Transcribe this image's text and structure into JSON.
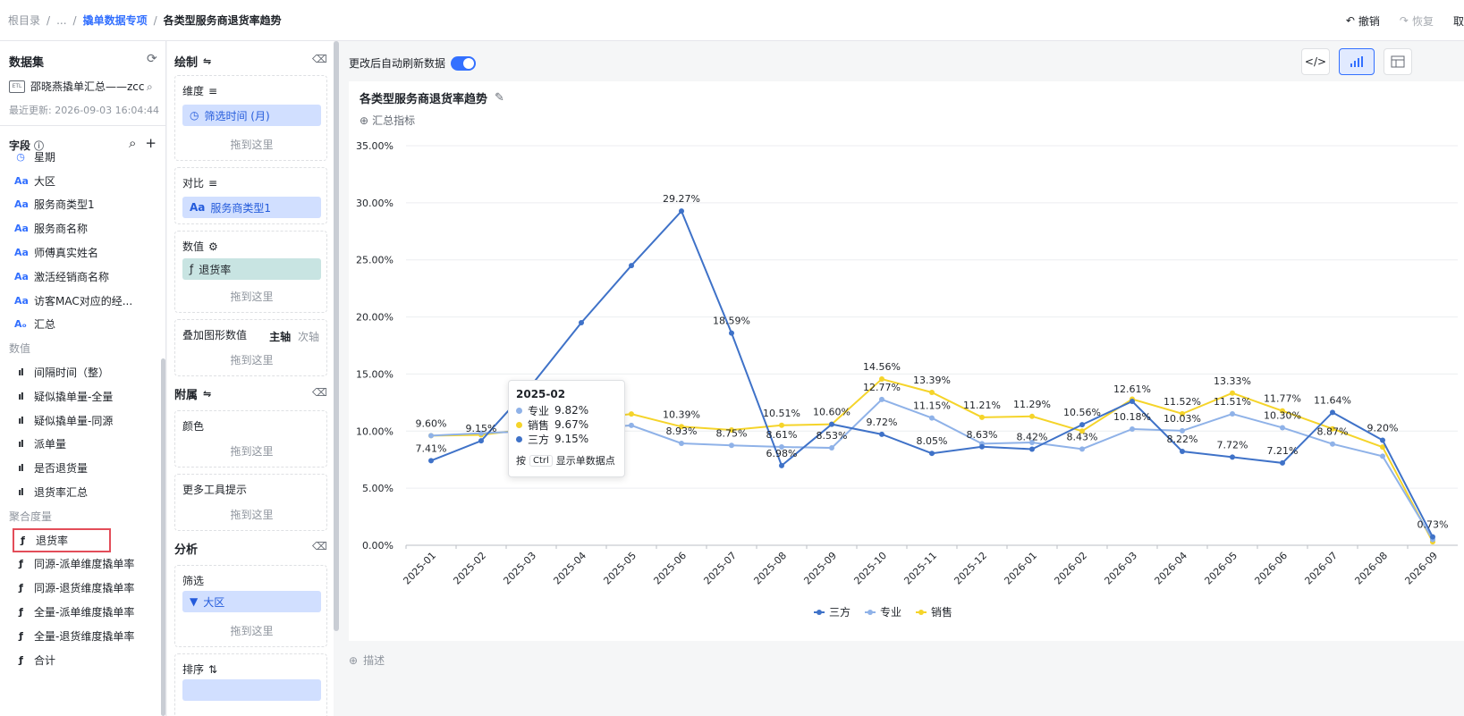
{
  "breadcrumb": {
    "root": "根目录",
    "ellipsis": "...",
    "parent": "撬单数据专项",
    "current": "各类型服务商退货率趋势"
  },
  "top_actions": {
    "undo": "撤销",
    "redo": "恢复",
    "cancel": "取"
  },
  "dataset": {
    "title": "数据集",
    "name": "邵晓燕撬单汇总——zcc",
    "updated": "最近更新: 2026-09-03 16:04:44",
    "fields_label": "字段"
  },
  "field_list": [
    {
      "kind": "item",
      "icon": "date",
      "label": "星期"
    },
    {
      "kind": "item",
      "icon": "text",
      "label": "大区"
    },
    {
      "kind": "item",
      "icon": "text",
      "label": "服务商类型1"
    },
    {
      "kind": "item",
      "icon": "text",
      "label": "服务商名称"
    },
    {
      "kind": "item",
      "icon": "text",
      "label": "师傅真实姓名"
    },
    {
      "kind": "item",
      "icon": "text",
      "label": "激活经销商名称"
    },
    {
      "kind": "item",
      "icon": "text",
      "label": "访客MAC对应的经..."
    },
    {
      "kind": "item",
      "icon": "calc-text",
      "label": "汇总"
    },
    {
      "kind": "group",
      "label": "数值"
    },
    {
      "kind": "item",
      "icon": "measure",
      "label": "间隔时间（整）"
    },
    {
      "kind": "item",
      "icon": "measure",
      "label": "疑似撬单量-全量"
    },
    {
      "kind": "item",
      "icon": "measure",
      "label": "疑似撬单量-同源"
    },
    {
      "kind": "item",
      "icon": "measure",
      "label": "派单量"
    },
    {
      "kind": "item",
      "icon": "measure",
      "label": "是否退货量"
    },
    {
      "kind": "item",
      "icon": "measure",
      "label": "退货率汇总"
    },
    {
      "kind": "group",
      "label": "聚合度量"
    },
    {
      "kind": "item",
      "icon": "agg",
      "label": "退货率",
      "selected": true
    },
    {
      "kind": "item",
      "icon": "agg",
      "label": "同源-派单维度撬单率"
    },
    {
      "kind": "item",
      "icon": "agg",
      "label": "同源-退货维度撬单率"
    },
    {
      "kind": "item",
      "icon": "agg",
      "label": "全量-派单维度撬单率"
    },
    {
      "kind": "item",
      "icon": "agg",
      "label": "全量-退货维度撬单率"
    },
    {
      "kind": "item",
      "icon": "agg",
      "label": "合计"
    }
  ],
  "config": {
    "draw_title": "绘制",
    "dimension_label": "维度",
    "dimension_value": "筛选时间 (月)",
    "compare_label": "对比",
    "compare_value": "服务商类型1",
    "value_label": "数值",
    "value_value": "退货率",
    "overlay_label": "叠加图形数值",
    "overlay_primary": "主轴",
    "overlay_secondary": "次轴",
    "drop_here": "拖到这里",
    "attach_title": "附属",
    "color_label": "颜色",
    "tooltip_label": "更多工具提示",
    "analysis_title": "分析",
    "filter_label": "筛选",
    "filter_value": "大区",
    "sort_label": "排序"
  },
  "main": {
    "auto_refresh": "更改后自动刷新数据",
    "chart_title": "各类型服务商退货率趋势",
    "summary": "汇总指标",
    "description": "描述"
  },
  "tooltip": {
    "title": "2025-02",
    "rows": [
      {
        "name": "专业",
        "value": "9.82%",
        "color": "#8fb2e8"
      },
      {
        "name": "销售",
        "value": "9.67%",
        "color": "#f5d42a"
      },
      {
        "name": "三方",
        "value": "9.15%",
        "color": "#3f72c8"
      }
    ],
    "hint_prefix": "按",
    "hint_key": "Ctrl",
    "hint_suffix": "显示单数据点"
  },
  "chart_data": {
    "type": "line",
    "categories": [
      "2025-01",
      "2025-02",
      "2025-03",
      "2025-04",
      "2025-05",
      "2025-06",
      "2025-07",
      "2025-08",
      "2025-09",
      "2025-10",
      "2025-11",
      "2025-12",
      "2026-01",
      "2026-02",
      "2026-03",
      "2026-04",
      "2026-05",
      "2026-06",
      "2026-07",
      "2026-08",
      "2026-09"
    ],
    "ylim": [
      0,
      35
    ],
    "yticks": [
      "0.00%",
      "5.00%",
      "10.00%",
      "15.00%",
      "20.00%",
      "25.00%",
      "30.00%",
      "35.00%"
    ],
    "series": [
      {
        "name": "三方",
        "color": "#3f72c8",
        "values": [
          7.41,
          9.15,
          14.0,
          19.5,
          24.5,
          29.27,
          18.59,
          6.98,
          10.6,
          9.72,
          8.05,
          8.63,
          8.42,
          10.56,
          12.61,
          8.22,
          7.72,
          7.21,
          11.64,
          9.2,
          0.73
        ],
        "labels": [
          "7.41%",
          "9.15%",
          "",
          "",
          "",
          "29.27%",
          "18.59%",
          "6.98%",
          "",
          "9.72%",
          "8.05%",
          "8.63%",
          "8.42%",
          "10.56%",
          "12.61%",
          "8.22%",
          "7.72%",
          "7.21%",
          "11.64%",
          "9.20%",
          "0.73%"
        ]
      },
      {
        "name": "专业",
        "color": "#8fb2e8",
        "values": [
          9.6,
          9.82,
          10.0,
          10.2,
          10.5,
          8.93,
          8.75,
          8.61,
          8.53,
          12.77,
          11.15,
          8.9,
          9.0,
          8.43,
          10.18,
          10.03,
          11.51,
          10.3,
          8.87,
          7.8,
          0.5
        ],
        "labels": [
          "",
          "",
          "",
          "",
          "",
          "8.93%",
          "8.75%",
          "8.61%",
          "8.53%",
          "12.77%",
          "11.15%",
          "",
          "",
          "8.43%",
          "10.18%",
          "10.03%",
          "11.51%",
          "10.30%",
          "8.87%",
          "",
          ""
        ]
      },
      {
        "name": "销售",
        "color": "#f5d42a",
        "values": [
          9.6,
          9.67,
          10.2,
          11.0,
          11.5,
          10.39,
          10.1,
          10.51,
          10.6,
          14.56,
          13.39,
          11.21,
          11.29,
          10.0,
          12.8,
          11.52,
          13.33,
          11.77,
          10.2,
          8.6,
          0.3
        ],
        "labels": [
          "9.60%",
          "",
          "",
          "",
          "",
          "10.39%",
          "",
          "10.51%",
          "10.60%",
          "14.56%",
          "13.39%",
          "11.21%",
          "11.29%",
          "",
          "",
          "11.52%",
          "13.33%",
          "11.77%",
          "",
          "",
          ""
        ]
      }
    ],
    "legend": [
      "三方",
      "专业",
      "销售"
    ],
    "legend_position": "bottom"
  }
}
